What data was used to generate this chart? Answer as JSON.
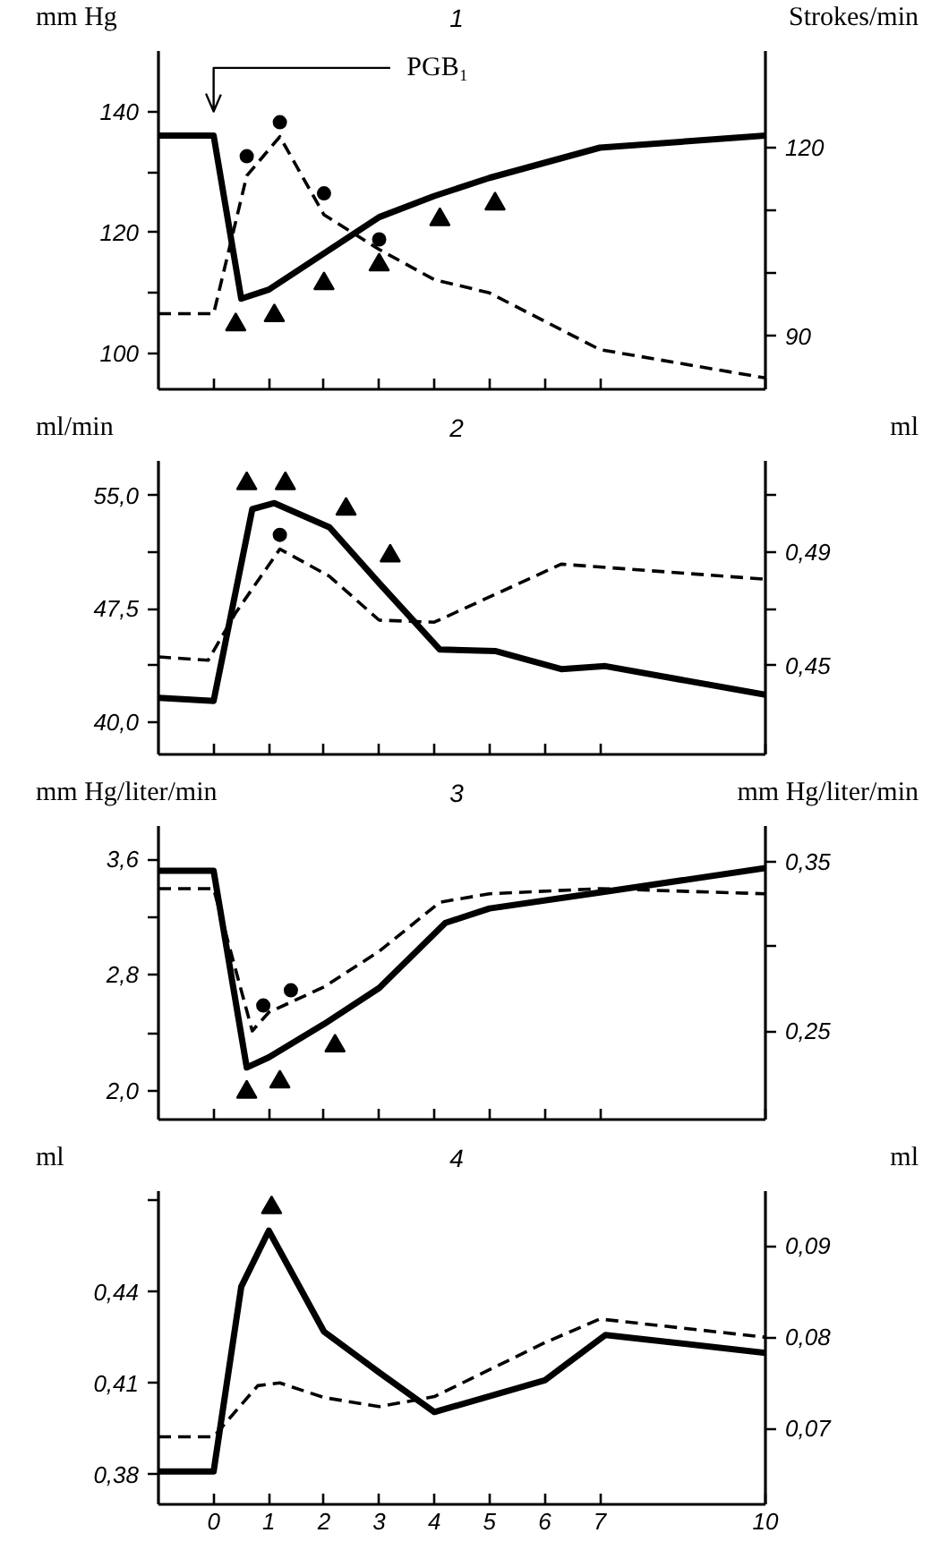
{
  "chart_data": [
    {
      "type": "line",
      "title": "1",
      "ylabel": "mm Hg",
      "y2label": "Strokes/min",
      "xlim": [
        -1,
        10
      ],
      "xticks": [
        0,
        1,
        2,
        3,
        4,
        5,
        6,
        7,
        10
      ],
      "ylim": [
        94,
        150
      ],
      "yticks": [
        100,
        {
          "value": 110,
          "label": null
        },
        120,
        {
          "value": 130,
          "label": null
        },
        140
      ],
      "y2lim": [
        81.6,
        135.3
      ],
      "y2ticks": [
        90,
        {
          "value": 100,
          "label": null
        },
        {
          "value": 110,
          "label": null
        },
        120
      ],
      "tick_labels": "y",
      "grid": false,
      "ref_lines": [
        {
          "axis": "x",
          "value": 0,
          "label": "PGB₁"
        }
      ],
      "series": [
        {
          "line_style": "solid",
          "color": "#000000",
          "x": [
            -1,
            0,
            0.5,
            1,
            2,
            3,
            4,
            5,
            7,
            10
          ],
          "values": [
            136,
            136,
            109,
            110.5,
            116.5,
            122.5,
            126,
            129,
            134,
            136
          ]
        },
        {
          "line_style": "dashed",
          "axis": "y2",
          "color": "#000000",
          "x": [
            -1,
            0,
            0.6,
            1.2,
            2,
            3,
            4,
            5,
            7,
            10
          ],
          "values": [
            93.6,
            93.6,
            115.5,
            121.7,
            109.3,
            103.8,
            99,
            96.9,
            87.9,
            83.4
          ]
        },
        {
          "type": "scatter",
          "marker": "triangle",
          "color": "#000000",
          "x": [
            0.4,
            1.1,
            2,
            3,
            4.1,
            5.1
          ],
          "values": [
            104.7,
            106.2,
            111.5,
            114.6,
            122.1,
            124.7
          ]
        },
        {
          "type": "scatter",
          "marker": "circle",
          "axis": "y2",
          "color": "#000000",
          "x": [
            0.6,
            1.2,
            2,
            3
          ],
          "values": [
            118.6,
            124,
            112.7,
            105.4
          ]
        }
      ]
    },
    {
      "type": "line",
      "title": "2",
      "ylabel": "ml/min",
      "y2label": "ml",
      "xlim": [
        -1,
        10
      ],
      "xticks": [
        0,
        1,
        2,
        3,
        4,
        5,
        6,
        7,
        10
      ],
      "ylim": [
        37.85,
        57.3
      ],
      "yticks": [
        {
          "value": 40,
          "label": "40,0"
        },
        {
          "value": 43.75,
          "label": null
        },
        {
          "value": 47.5,
          "label": "47,5"
        },
        {
          "value": 51.25,
          "label": null
        },
        {
          "value": 55,
          "label": "55,0"
        }
      ],
      "y2lim": [
        0.4188,
        0.522
      ],
      "y2ticks": [
        {
          "value": 0.45,
          "label": "0,45"
        },
        {
          "value": 0.47,
          "label": null
        },
        {
          "value": 0.49,
          "label": "0,49"
        },
        {
          "value": 0.51,
          "label": null
        }
      ],
      "tick_labels": "y",
      "grid": false,
      "series": [
        {
          "line_style": "solid",
          "color": "#000000",
          "x": [
            -1,
            0,
            0.7,
            1.1,
            2.1,
            3,
            4.1,
            5.1,
            6.3,
            7.1,
            10
          ],
          "values": [
            41.6,
            41.4,
            54.1,
            54.5,
            52.9,
            49.2,
            44.8,
            44.7,
            43.5,
            43.7,
            41.8
          ]
        },
        {
          "line_style": "dashed",
          "axis": "y2",
          "color": "#000000",
          "x": [
            -1,
            -0.1,
            0.4,
            1.2,
            2.1,
            3,
            4,
            6.3,
            10
          ],
          "values": [
            0.4531,
            0.4519,
            0.4686,
            0.491,
            0.4814,
            0.466,
            0.4653,
            0.4857,
            0.4804
          ]
        },
        {
          "type": "scatter",
          "marker": "triangle",
          "color": "#000000",
          "x": [
            0.6,
            1.3,
            2.4,
            3.2
          ],
          "values": [
            55.8,
            55.8,
            54.1,
            51.0
          ]
        },
        {
          "type": "scatter",
          "marker": "circle",
          "axis": "y2",
          "color": "#000000",
          "x": [
            1.2
          ],
          "values": [
            0.496
          ]
        }
      ]
    },
    {
      "type": "line",
      "title": "3",
      "ylabel": "mm Hg/liter/min",
      "y2label": "mm Hg/liter/min",
      "xlim": [
        -1,
        10
      ],
      "xticks": [
        0,
        1,
        2,
        3,
        4,
        5,
        6,
        7,
        10
      ],
      "ylim": [
        1.8,
        3.83
      ],
      "yticks": [
        {
          "value": 2.0,
          "label": "2,0"
        },
        {
          "value": 2.4,
          "label": null
        },
        {
          "value": 2.8,
          "label": "2,8"
        },
        {
          "value": 3.2,
          "label": null
        },
        {
          "value": 3.6,
          "label": "3,6"
        }
      ],
      "y2lim": [
        0.1977,
        0.371
      ],
      "y2ticks": [
        {
          "value": 0.25,
          "label": "0,25"
        },
        {
          "value": 0.3,
          "label": null
        },
        {
          "value": 0.35,
          "label": "0,35"
        }
      ],
      "tick_labels": "y",
      "grid": false,
      "series": [
        {
          "line_style": "solid",
          "color": "#000000",
          "x": [
            -1,
            0,
            0.6,
            1,
            2,
            3,
            4.2,
            5,
            7,
            10
          ],
          "values": [
            3.52,
            3.52,
            2.16,
            2.23,
            2.46,
            2.71,
            3.16,
            3.26,
            3.37,
            3.54
          ]
        },
        {
          "line_style": "dashed",
          "axis": "y2",
          "color": "#000000",
          "x": [
            -1,
            0,
            0.7,
            1,
            2,
            3,
            4.1,
            5,
            7,
            10
          ],
          "values": [
            0.334,
            0.334,
            0.25,
            0.261,
            0.276,
            0.297,
            0.326,
            0.331,
            0.334,
            0.331
          ]
        },
        {
          "type": "scatter",
          "marker": "triangle",
          "color": "#000000",
          "x": [
            0.6,
            1.2,
            2.2
          ],
          "values": [
            1.99,
            2.06,
            2.31
          ]
        },
        {
          "type": "scatter",
          "marker": "circle",
          "axis": "y2",
          "color": "#000000",
          "x": [
            0.9,
            1.4
          ],
          "values": [
            0.265,
            0.274
          ]
        }
      ]
    },
    {
      "type": "line",
      "title": "4",
      "ylabel": "ml",
      "y2label": "ml",
      "xlim": [
        -1,
        10
      ],
      "xticks": [
        0,
        1,
        2,
        3,
        4,
        5,
        6,
        7,
        10
      ],
      "ylim": [
        0.3703,
        0.4731
      ],
      "yticks": [
        {
          "value": 0.38,
          "label": "0,38"
        },
        {
          "value": 0.41,
          "label": "0,41"
        },
        {
          "value": 0.44,
          "label": "0,44"
        },
        {
          "value": 0.47,
          "label": null
        }
      ],
      "y2lim": [
        0.0617,
        0.096
      ],
      "y2ticks": [
        {
          "value": 0.07,
          "label": "0,07"
        },
        {
          "value": 0.08,
          "label": "0,08"
        },
        {
          "value": 0.09,
          "label": "0,09"
        }
      ],
      "grid": false,
      "series": [
        {
          "line_style": "solid",
          "color": "#000000",
          "x": [
            -1,
            0,
            0.5,
            1,
            2,
            3,
            4,
            6,
            7.1,
            10
          ],
          "values": [
            0.3811,
            0.3811,
            0.4417,
            0.4601,
            0.427,
            0.4136,
            0.4006,
            0.411,
            0.4259,
            0.42
          ]
        },
        {
          "line_style": "dashed",
          "axis": "y2",
          "color": "#000000",
          "x": [
            -1,
            0,
            0.8,
            1.2,
            2,
            3,
            4,
            6,
            7,
            10
          ],
          "values": [
            0.0691,
            0.0691,
            0.0747,
            0.075,
            0.0734,
            0.0724,
            0.0735,
            0.0794,
            0.082,
            0.08
          ]
        },
        {
          "type": "scatter",
          "marker": "triangle",
          "color": "#000000",
          "x": [
            1.05
          ],
          "values": [
            0.4677
          ]
        }
      ]
    }
  ]
}
